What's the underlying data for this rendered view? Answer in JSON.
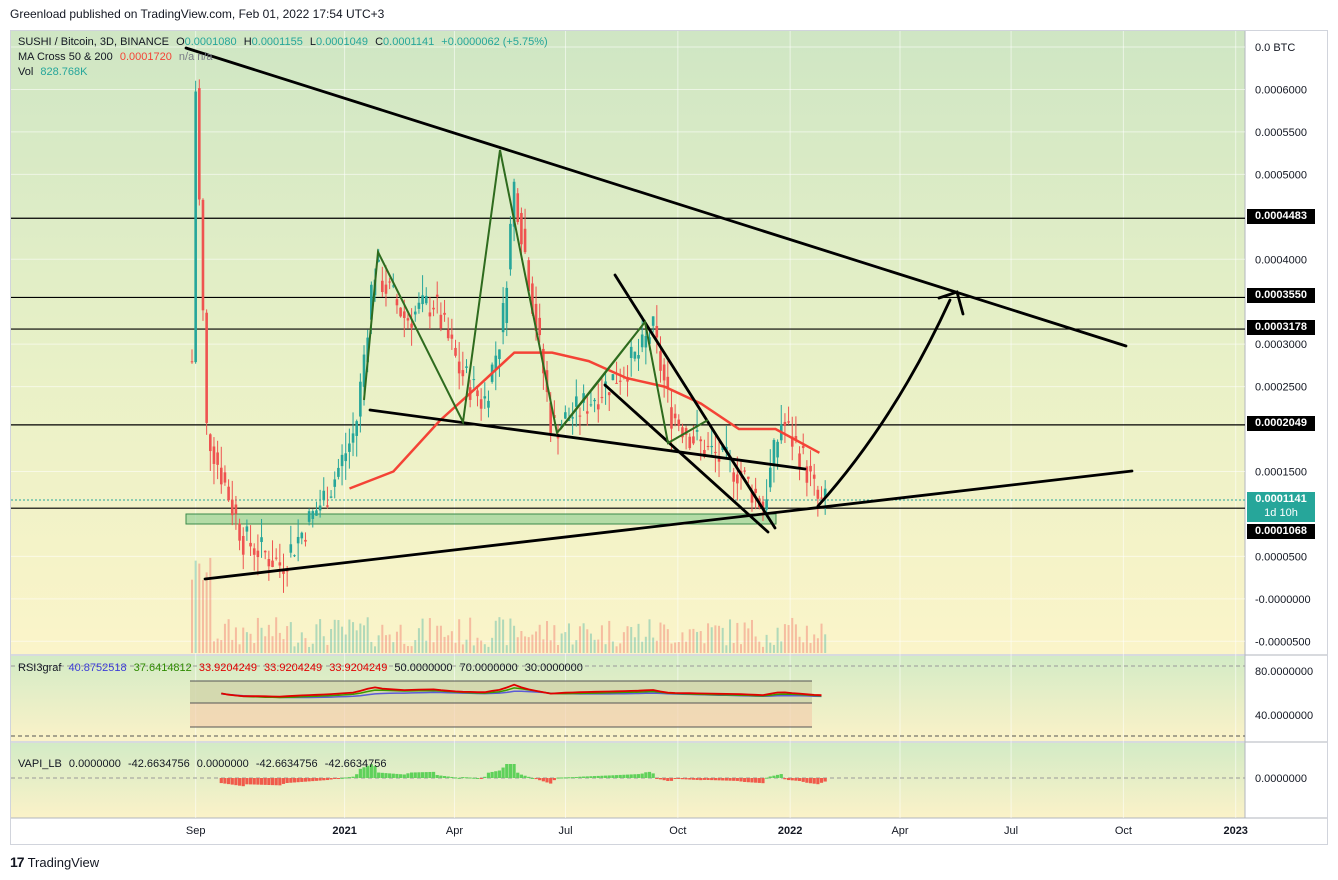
{
  "header": {
    "published_line": "Greenload published on TradingView.com, Feb 01, 2022 17:54 UTC+3"
  },
  "legend": {
    "symbol": "SUSHI / Bitcoin, 3D, BINANCE",
    "open_label": "O",
    "open": "0.0001080",
    "high_label": "H",
    "high": "0.0001155",
    "low_label": "L",
    "low": "0.0001049",
    "close_label": "C",
    "close": "0.0001141",
    "change": "+0.0000062 (+5.75%)",
    "ma_label": "MA Cross 50 & 200",
    "ma_value": "0.0001720",
    "ma_na": "n/a  n/a",
    "vol_label": "Vol",
    "vol_value": "828.768K"
  },
  "rsi_legend": {
    "label": "RSI3graf",
    "v1": "40.8752518",
    "v2": "37.6414812",
    "v3": "33.9204249",
    "v4": "33.9204249",
    "v5": "33.9204249",
    "v6": "50.0000000",
    "v7": "70.0000000",
    "v8": "30.0000000"
  },
  "vapi_legend": {
    "label": "VAPI_LB",
    "v1": "0.0000000",
    "v2": "-42.6634756",
    "v3": "0.0000000",
    "v4": "-42.6634756",
    "v5": "-42.6634756"
  },
  "price_tags": {
    "r1": "0.0004483",
    "r2": "0.0003550",
    "r3": "0.0003178",
    "r4": "0.0002049",
    "current": "0.0001141",
    "countdown": "1d 10h",
    "support": "0.0001068"
  },
  "footer": {
    "brand": "TradingView",
    "logo_mark": "17"
  },
  "colors": {
    "bull": "#26a69a",
    "bear": "#ef5350",
    "ma50": "#f44336",
    "trendline": "#000000",
    "pattern": "#2e6b1e",
    "rsi_red": "#e00000",
    "rsi_green": "#3c9a00",
    "rsi_blue": "#5b5bd6"
  },
  "chart_data": [
    {
      "type": "candlestick",
      "title": "SUSHI / Bitcoin, 3D, BINANCE",
      "x_ticks": [
        "Sep",
        "2021",
        "Apr",
        "Jul",
        "Oct",
        "2022",
        "Apr",
        "Jul",
        "Oct",
        "2023"
      ],
      "y_ticks": [
        "0.0 BTC",
        "0.0006000",
        "0.0005500",
        "0.0005000",
        "0.0004000",
        "0.0003000",
        "0.0002500",
        "0.0001500",
        "0.0000500",
        "-0.0000000",
        "-0.0000500"
      ],
      "ylim": [
        -5e-05,
        0.00065
      ],
      "horizontal_levels": [
        0.0004483,
        0.000355,
        0.0003178,
        0.0002049,
        0.0001068
      ],
      "current_price": 0.0001141,
      "approx_path": {
        "time": [
          "2020-08-29",
          "2020-09-01",
          "2020-09-10",
          "2020-10-10",
          "2020-11-10",
          "2020-12-20",
          "2021-01-10",
          "2021-01-25",
          "2021-02-20",
          "2021-03-15",
          "2021-04-05",
          "2021-04-25",
          "2021-05-10",
          "2021-05-20",
          "2021-06-20",
          "2021-07-10",
          "2021-08-10",
          "2021-09-01",
          "2021-09-10",
          "2021-09-25",
          "2021-10-20",
          "2021-11-20",
          "2021-12-10",
          "2021-12-25",
          "2022-01-10",
          "2022-01-25",
          "2022-02-01"
        ],
        "close": [
          0.00028,
          0.0006,
          0.0002,
          7e-05,
          4e-05,
          0.00013,
          0.0002,
          0.00039,
          0.00033,
          0.00035,
          0.00027,
          0.00023,
          0.00032,
          0.00049,
          0.0002,
          0.00022,
          0.00026,
          0.00029,
          0.00032,
          0.00022,
          0.00018,
          0.00015,
          0.00011,
          0.00021,
          0.00017,
          0.00011,
          0.0001141
        ]
      },
      "series": [
        {
          "name": "MA Cross 50 & 200",
          "time": [
            "2021-01-05",
            "2021-02-10",
            "2021-03-20",
            "2021-04-20",
            "2021-05-20",
            "2021-06-20",
            "2021-07-20",
            "2021-08-20",
            "2021-09-20",
            "2021-10-20",
            "2021-11-20",
            "2021-12-20",
            "2022-01-25"
          ],
          "values": [
            0.00013,
            0.00015,
            0.00021,
            0.00025,
            0.00029,
            0.00029,
            0.00028,
            0.00026,
            0.00025,
            0.00023,
            0.0002,
            0.0002,
            0.000172
          ]
        }
      ]
    },
    {
      "type": "line",
      "title": "RSI3graf",
      "y_ticks": [
        "80.0000000",
        "40.0000000"
      ],
      "ylim": [
        20,
        90
      ],
      "levels": [
        70,
        50,
        30
      ]
    },
    {
      "type": "area",
      "title": "VAPI_LB",
      "y_ticks": [
        "0.0000000"
      ]
    }
  ]
}
